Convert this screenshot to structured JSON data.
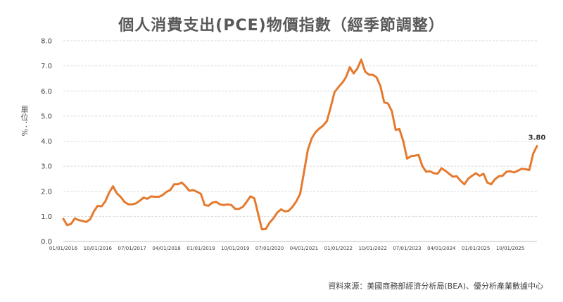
{
  "chart_data": {
    "type": "line",
    "title": "個人消費支出(PCE)物價指數（經季節調整）",
    "ylabel": "單位：%",
    "source": "資料來源：美國商務部經濟分析局(BEA)、優分析產業數據中心",
    "ylim": [
      0,
      8
    ],
    "y_ticks": [
      "0.0",
      "1.0",
      "2.0",
      "3.0",
      "4.0",
      "5.0",
      "6.0",
      "7.0",
      "8.0"
    ],
    "x_ticks": [
      "01/01/2016",
      "10/01/2016",
      "07/01/2017",
      "04/01/2018",
      "01/01/2019",
      "10/01/2019",
      "07/01/2020",
      "04/01/2021",
      "01/01/2022",
      "10/01/2022",
      "07/01/2023",
      "04/01/2024",
      "01/01/2025",
      "10/01/2025"
    ],
    "grid": true,
    "line_color": "#E57A2E",
    "end_label": "3.80",
    "series": [
      {
        "values": [
          0.9,
          0.65,
          0.7,
          0.92,
          0.85,
          0.82,
          0.78,
          0.88,
          1.2,
          1.42,
          1.4,
          1.6,
          1.95,
          2.2,
          1.92,
          1.78,
          1.58,
          1.48,
          1.48,
          1.52,
          1.62,
          1.75,
          1.7,
          1.8,
          1.78,
          1.78,
          1.85,
          1.98,
          2.05,
          2.28,
          2.28,
          2.35,
          2.2,
          2.02,
          2.05,
          1.98,
          1.9,
          1.45,
          1.42,
          1.55,
          1.58,
          1.48,
          1.45,
          1.48,
          1.45,
          1.3,
          1.3,
          1.38,
          1.58,
          1.8,
          1.72,
          1.1,
          0.48,
          0.5,
          0.75,
          0.92,
          1.15,
          1.28,
          1.2,
          1.22,
          1.38,
          1.6,
          1.9,
          2.75,
          3.65,
          4.1,
          4.35,
          4.5,
          4.62,
          4.8,
          5.35,
          5.95,
          6.15,
          6.32,
          6.55,
          6.95,
          6.7,
          6.9,
          7.25,
          6.78,
          6.65,
          6.65,
          6.55,
          6.2,
          5.55,
          5.5,
          5.2,
          4.45,
          4.48,
          4.0,
          3.3,
          3.4,
          3.42,
          3.45,
          3.0,
          2.78,
          2.8,
          2.72,
          2.7,
          2.92,
          2.82,
          2.7,
          2.58,
          2.6,
          2.42,
          2.28,
          2.5,
          2.62,
          2.72,
          2.62,
          2.7,
          2.35,
          2.28,
          2.48,
          2.6,
          2.62,
          2.78,
          2.8,
          2.75,
          2.82,
          2.9,
          2.88,
          2.85,
          3.5,
          3.8
        ]
      }
    ]
  }
}
